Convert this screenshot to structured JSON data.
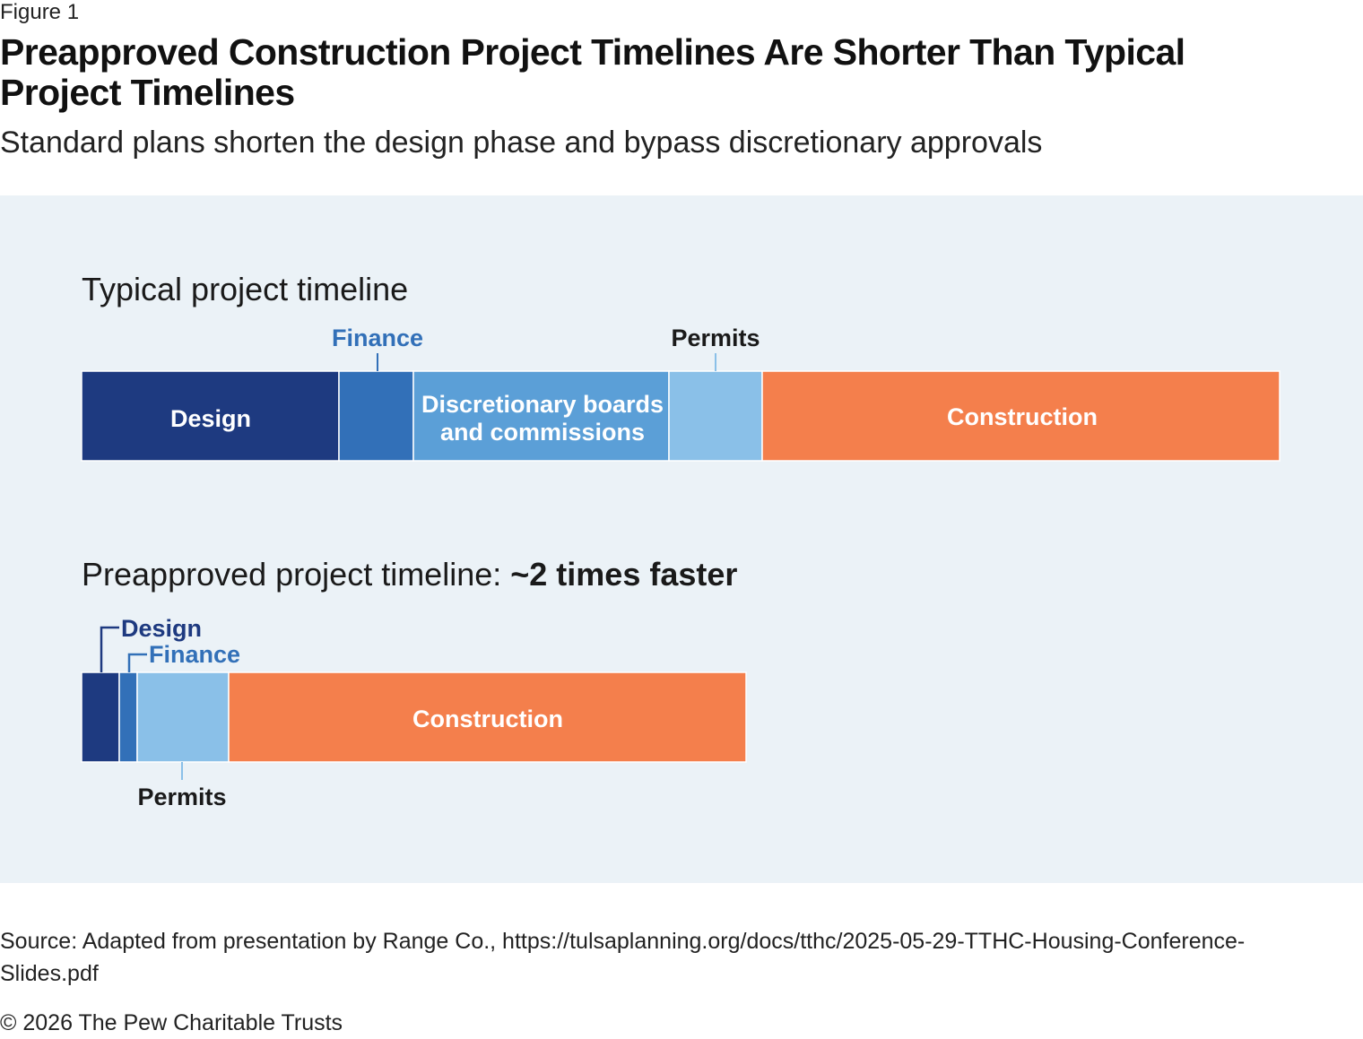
{
  "figure_label": "Figure 1",
  "title": "Preapproved Construction Project Timelines Are Shorter Than Typical Project Timelines",
  "subtitle": "Standard plans shorten the design phase and bypass discretionary approvals",
  "source": "Source: Adapted from presentation by Range Co., https://tulsaplanning.org/docs/tthc/2025-05-29-TTHC-Housing-Conference-Slides.pdf",
  "copyright": "© 2026 The Pew Charitable Trusts",
  "colors": {
    "design": "#1e3a80",
    "finance": "#3270b8",
    "discretionary": "#5b9fd7",
    "permits": "#8ac0e8",
    "construction": "#f47f4c",
    "panel_background": "#ebf2f7"
  },
  "chart_data": {
    "type": "bar",
    "orientation": "horizontal",
    "stacked": true,
    "axis_units": "relative duration",
    "categories": [
      "Typical project timeline",
      "Preapproved project timeline"
    ],
    "series": [
      {
        "name": "Design",
        "values": [
          287,
          42
        ]
      },
      {
        "name": "Finance",
        "values": [
          83,
          20
        ]
      },
      {
        "name": "Discretionary boards and commissions",
        "values": [
          285,
          0
        ]
      },
      {
        "name": "Permits",
        "values": [
          104,
          102
        ]
      },
      {
        "name": "Construction",
        "values": [
          577,
          577
        ]
      }
    ],
    "section_titles": [
      {
        "text": "Typical project timeline",
        "emphasis": ""
      },
      {
        "text": "Preapproved project timeline: ",
        "emphasis": "~2 times faster"
      }
    ],
    "segment_labels": {
      "typical": {
        "design": "Design",
        "discretionary_line1": "Discretionary boards",
        "discretionary_line2": "and commissions",
        "construction": "Construction"
      },
      "preapproved": {
        "construction": "Construction"
      }
    },
    "callout_labels": {
      "typical": {
        "finance": "Finance",
        "permits": "Permits"
      },
      "preapproved": {
        "design": "Design",
        "finance": "Finance",
        "permits": "Permits"
      }
    },
    "grid": false,
    "legend": "none"
  }
}
